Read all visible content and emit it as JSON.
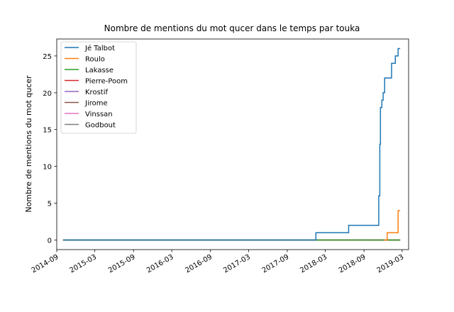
{
  "chart_data": {
    "type": "line",
    "title": "Nombre de mentions du mot qucer dans le temps par touka",
    "xlabel": "",
    "ylabel": "Nombre de mentions du mot qucer",
    "xlim": [
      "2014-09-01",
      "2019-04-01"
    ],
    "ylim": [
      -1.3,
      27.3
    ],
    "x_ticks": [
      "2014-09",
      "2015-03",
      "2015-09",
      "2016-03",
      "2016-09",
      "2017-03",
      "2017-09",
      "2018-03",
      "2018-09",
      "2019-03"
    ],
    "y_ticks": [
      0,
      5,
      10,
      15,
      20,
      25
    ],
    "grid": false,
    "legend_position": "top-left",
    "series": [
      {
        "name": "Jé Talbot",
        "color": "#1f77b4",
        "step": true,
        "points": [
          [
            "2014-10-01",
            0
          ],
          [
            "2018-01-15",
            1
          ],
          [
            "2018-06-20",
            2
          ],
          [
            "2018-11-10",
            6
          ],
          [
            "2018-11-15",
            13
          ],
          [
            "2018-11-18",
            18
          ],
          [
            "2018-11-25",
            19
          ],
          [
            "2018-12-01",
            20
          ],
          [
            "2018-12-08",
            22
          ],
          [
            "2019-01-10",
            24
          ],
          [
            "2019-01-28",
            25
          ],
          [
            "2019-02-10",
            26
          ],
          [
            "2019-02-20",
            26
          ]
        ]
      },
      {
        "name": "Roulo",
        "color": "#ff7f0e",
        "step": true,
        "points": [
          [
            "2018-12-05",
            0
          ],
          [
            "2018-12-20",
            1
          ],
          [
            "2019-02-10",
            4
          ],
          [
            "2019-02-20",
            4
          ]
        ]
      },
      {
        "name": "Lakasse",
        "color": "#2ca02c",
        "step": true,
        "points": [
          [
            "2014-10-01",
            0
          ],
          [
            "2019-02-20",
            0
          ]
        ]
      },
      {
        "name": "Pierre-Poom",
        "color": "#d62728",
        "step": true,
        "points": [
          [
            "2014-10-01",
            0
          ],
          [
            "2019-02-20",
            0
          ]
        ]
      },
      {
        "name": "Krostif",
        "color": "#9467bd",
        "step": true,
        "points": [
          [
            "2014-10-01",
            0
          ],
          [
            "2019-02-20",
            0
          ]
        ]
      },
      {
        "name": "Jirome",
        "color": "#8c564b",
        "step": true,
        "points": [
          [
            "2014-10-01",
            0
          ],
          [
            "2019-02-20",
            0
          ]
        ]
      },
      {
        "name": "Vinssan",
        "color": "#e377c2",
        "step": true,
        "points": [
          [
            "2018-09-15",
            0
          ],
          [
            "2019-02-20",
            0
          ]
        ]
      },
      {
        "name": "Godbout",
        "color": "#7f7f7f",
        "step": true,
        "points": [
          [
            "2014-10-01",
            0
          ],
          [
            "2019-02-20",
            0
          ]
        ]
      }
    ]
  }
}
